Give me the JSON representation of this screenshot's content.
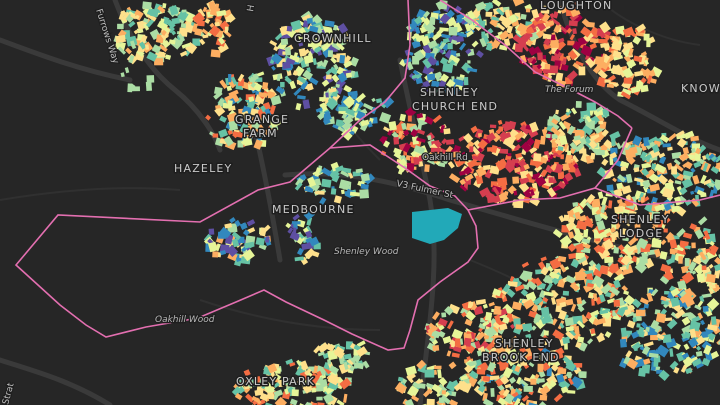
{
  "map": {
    "background": "#262626",
    "boundary_color": "#e36fb0",
    "palette": [
      "#5e4fa2",
      "#3288bd",
      "#66c2a5",
      "#abdda4",
      "#e6f598",
      "#fee08b",
      "#fdae61",
      "#f46d43",
      "#d53e4f",
      "#9e0142"
    ],
    "lake_color": "#22a9b8",
    "places": [
      {
        "id": "loughton",
        "name": "LOUGHTON"
      },
      {
        "id": "crownhill",
        "name": "CROWNHILL"
      },
      {
        "id": "knowlhill",
        "name": "KNOWL"
      },
      {
        "id": "shenley-church-end-1",
        "name": "SHENLEY"
      },
      {
        "id": "shenley-church-end-2",
        "name": "CHURCH END"
      },
      {
        "id": "grange-farm-1",
        "name": "GRANGE"
      },
      {
        "id": "grange-farm-2",
        "name": "FARM"
      },
      {
        "id": "hazeley",
        "name": "HAZELEY"
      },
      {
        "id": "medbourne",
        "name": "MEDBOURNE"
      },
      {
        "id": "shenley-lodge-1",
        "name": "SHENLEY"
      },
      {
        "id": "shenley-lodge-2",
        "name": "LODGE"
      },
      {
        "id": "shenley-brook-end-1",
        "name": "SHENLEY"
      },
      {
        "id": "shenley-brook-end-2",
        "name": "BROOK END"
      },
      {
        "id": "oxley-park",
        "name": "OXLEY PARK"
      }
    ],
    "roads": [
      {
        "id": "fulmer-st",
        "name": "V3 Fulmer St"
      },
      {
        "id": "oakhill-rd",
        "name": "Oakhill Rd"
      },
      {
        "id": "the-forum",
        "name": "The Forum"
      },
      {
        "id": "furrows-way",
        "name": "Furrows Way"
      },
      {
        "id": "stratford-rd",
        "name": "Strat"
      }
    ],
    "woods": [
      {
        "id": "shenley-wood",
        "name": "Shenley Wood"
      },
      {
        "id": "oakhill-wood",
        "name": "Oakhill Wood"
      }
    ]
  }
}
